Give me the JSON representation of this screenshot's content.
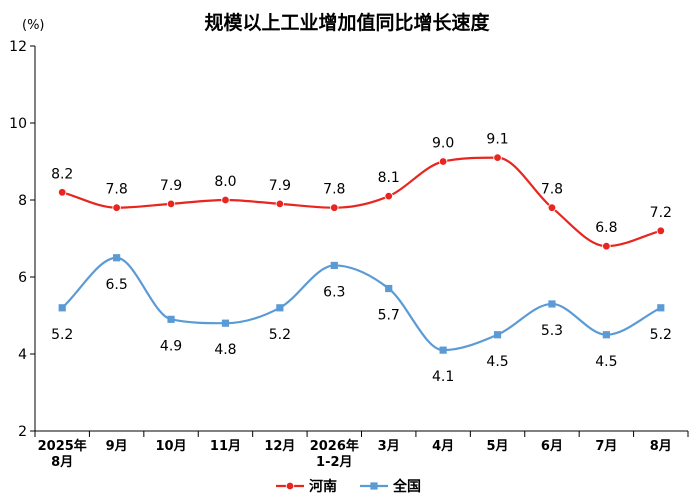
{
  "chart_data": {
    "type": "line",
    "title": "规模以上工业增加值同比增长速度",
    "unit": "(%)",
    "ylim": [
      2,
      12
    ],
    "yticks": [
      2,
      4,
      6,
      8,
      10,
      12
    ],
    "grid": false,
    "legend_position": "bottom",
    "categories": [
      [
        "2025年",
        "8月"
      ],
      [
        "9月"
      ],
      [
        "10月"
      ],
      [
        "11月"
      ],
      [
        "12月"
      ],
      [
        "2026年",
        "1-2月"
      ],
      [
        "3月"
      ],
      [
        "4月"
      ],
      [
        "5月"
      ],
      [
        "6月"
      ],
      [
        "7月"
      ],
      [
        "8月"
      ]
    ],
    "series": [
      {
        "name": "河南",
        "color": "#e8251f",
        "marker": "circle",
        "values": [
          8.2,
          7.8,
          7.9,
          8.0,
          7.9,
          7.8,
          8.1,
          9.0,
          9.1,
          7.8,
          6.8,
          7.2
        ],
        "labels": [
          "8.2",
          "7.8",
          "7.9",
          "8.0",
          "7.9",
          "7.8",
          "8.1",
          "9.0",
          "9.1",
          "7.8",
          "6.8",
          "7.2"
        ],
        "label_position": "above"
      },
      {
        "name": "全国",
        "color": "#5b9bd5",
        "marker": "square",
        "values": [
          5.2,
          6.5,
          4.9,
          4.8,
          5.2,
          6.3,
          5.7,
          4.1,
          4.5,
          5.3,
          4.5,
          5.2
        ],
        "labels": [
          "5.2",
          "6.5",
          "4.9",
          "4.8",
          "5.2",
          "6.3",
          "5.7",
          "4.1",
          "4.5",
          "5.3",
          "4.5",
          "5.2"
        ],
        "label_position": "below"
      }
    ]
  }
}
